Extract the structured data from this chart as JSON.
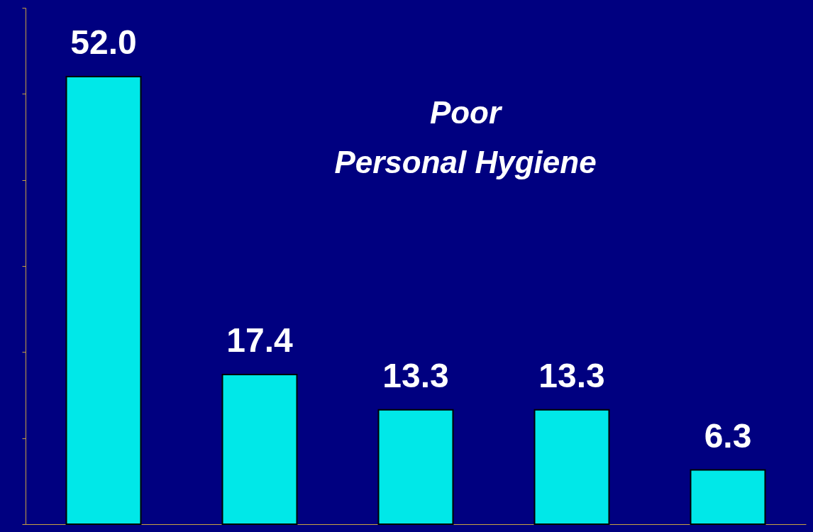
{
  "chart_data": {
    "type": "bar",
    "title": "Poor\nPersonal Hygiene",
    "categories": [
      null,
      null,
      null,
      null,
      null
    ],
    "values": [
      52.0,
      17.4,
      13.3,
      13.3,
      6.3
    ],
    "color": "#00e8e8",
    "ylim": [
      0,
      60
    ],
    "yticks": [
      {
        "value": 0,
        "label": null
      },
      {
        "value": 10,
        "label": null
      },
      {
        "value": 20,
        "label": null
      },
      {
        "value": 30,
        "label": null
      },
      {
        "value": 40,
        "label": null
      },
      {
        "value": 50,
        "label": null
      },
      {
        "value": 60,
        "label": null
      }
    ],
    "tick_labels": false,
    "value_labels": [
      "52.0",
      "17.4",
      "13.3",
      "13.3",
      "6.3"
    ],
    "grid": false
  }
}
